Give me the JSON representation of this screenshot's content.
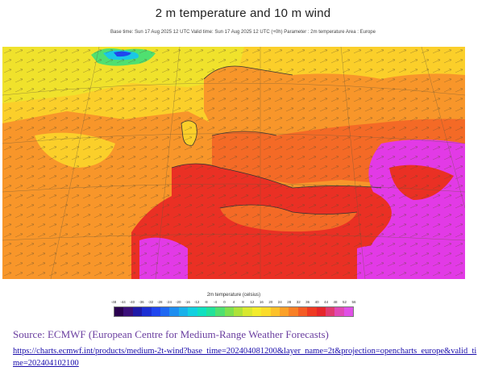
{
  "title": "2 m temperature and 10 m wind",
  "subtitle": "Base time: Sun 17 Aug 2025 12 UTC Valid time: Sun 17 Aug 2025 12 UTC (+0h) Parameter : 2m temperature Area : Europe",
  "colorbar": {
    "title": "2m temperature (celsius)",
    "ticks": [
      "-48",
      "-44",
      "-40",
      "-36",
      "-32",
      "-28",
      "-24",
      "-20",
      "-16",
      "-12",
      "-8",
      "-4",
      "0",
      "4",
      "8",
      "12",
      "16",
      "20",
      "24",
      "28",
      "32",
      "36",
      "40",
      "44",
      "48",
      "52",
      "56"
    ],
    "colors": [
      "#2a004f",
      "#3b0f7a",
      "#1f1aa8",
      "#1c2fd4",
      "#2046ef",
      "#1f68f2",
      "#1e8ef0",
      "#19b1ea",
      "#12d0e0",
      "#10e0c0",
      "#22e29a",
      "#4fe070",
      "#7ee04e",
      "#aee23a",
      "#d8e830",
      "#f3ec2c",
      "#fbdc2a",
      "#fcc12a",
      "#fba128",
      "#f88026",
      "#f45c24",
      "#ef3a22",
      "#e6262a",
      "#e03a6e",
      "#e048b4",
      "#e050e6"
    ]
  },
  "source": "Source: ECMWF (European Centre for Medium-Range Weather Forecasts)",
  "link": "https://charts.ecmwf.int/products/medium-2t-wind?base_time=202404081200&layer_name=2t&projection=opencharts_europe&valid_time=202404102100",
  "map": {
    "region": "Europe",
    "colors": {
      "cold_blue": "#1f46ef",
      "cyan": "#19c8e6",
      "green": "#4fe070",
      "yellow": "#f0e22c",
      "yellow_orange": "#fbcf2a",
      "orange": "#f8962a",
      "orange_red": "#f46a26",
      "red": "#ea3024",
      "magenta": "#e23ae6",
      "ocean_light": "#f6c030"
    }
  }
}
